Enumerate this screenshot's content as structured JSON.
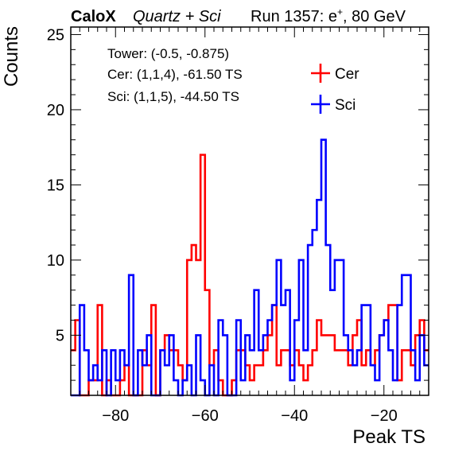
{
  "header": {
    "brand": "CaloX",
    "detector": "Quartz + Sci",
    "run_text": "Run 1357: e",
    "run_sup": "+",
    "run_energy": ", 80 GeV"
  },
  "annotations": {
    "tower": "Tower: (-0.5, -0.875)",
    "cer": "Cer: (1,1,4), -61.50 TS",
    "sci": "Sci: (1,1,5), -44.50 TS"
  },
  "colors": {
    "cer": "#ff0000",
    "sci": "#0000ff",
    "axis": "#000000"
  },
  "chart_data": {
    "type": "histogram",
    "xlabel": "Peak TS",
    "ylabel": "Counts",
    "xlim": [
      -90,
      -10
    ],
    "ylim": [
      1,
      25.5
    ],
    "bin_width": 1,
    "x_start": -90,
    "x_ticks": [
      -80,
      -60,
      -40,
      -20
    ],
    "y_ticks": [
      5,
      10,
      15,
      20,
      25
    ],
    "legend": {
      "position": "top-right"
    },
    "series": [
      {
        "name": "Cer",
        "color": "#ff0000",
        "values": [
          4,
          6,
          1,
          1,
          2,
          2,
          7,
          1,
          2,
          1,
          1,
          2,
          3,
          1,
          1,
          1,
          4,
          3,
          7,
          1,
          4,
          5,
          4,
          4,
          3,
          2,
          10,
          11,
          10,
          17,
          8,
          3,
          4,
          2,
          1,
          1,
          2,
          4,
          4,
          3,
          2,
          3,
          3,
          4,
          5,
          7,
          3,
          4,
          4,
          3,
          4,
          3,
          2,
          3,
          4,
          6,
          5,
          5,
          5,
          4,
          4,
          4,
          3,
          5,
          6,
          3,
          4,
          3,
          4,
          5,
          6,
          7,
          7,
          2,
          4,
          4,
          3,
          5,
          6,
          4
        ]
      },
      {
        "name": "Sci",
        "color": "#0000ff",
        "values": [
          1,
          1,
          7,
          4,
          2,
          3,
          2,
          4,
          1,
          4,
          2,
          4,
          3,
          9,
          1,
          4,
          3,
          5,
          1,
          1,
          4,
          3,
          5,
          2,
          1,
          2,
          3,
          1,
          5,
          2,
          1,
          3,
          1,
          6,
          5,
          1,
          1,
          6,
          2,
          5,
          4,
          8,
          4,
          5,
          6,
          7,
          10,
          7,
          8,
          2,
          6,
          10,
          4,
          11,
          12,
          14,
          18,
          11,
          8,
          10,
          10,
          5,
          4,
          3,
          4,
          7,
          7,
          3,
          2,
          5,
          6,
          4,
          2,
          7,
          9,
          9,
          4,
          2,
          5,
          3
        ]
      }
    ]
  }
}
